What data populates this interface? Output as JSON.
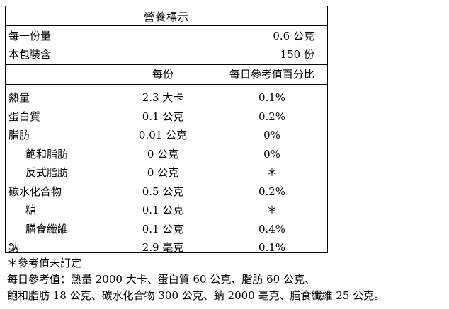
{
  "title": "營養標示",
  "serving": {
    "size_label": "每一份量",
    "size_value": "0.6 公克",
    "count_label": "本包裝含",
    "count_value": "150 份"
  },
  "columns": {
    "per_serving": "每份",
    "daily_percent": "每日參考值百分比"
  },
  "rows": [
    {
      "label": "熱量",
      "per": "2.3 大卡",
      "pct": "0.1%",
      "indent": false
    },
    {
      "label": "蛋白質",
      "per": "0.1 公克",
      "pct": "0.2%",
      "indent": false
    },
    {
      "label": "脂肪",
      "per": "0.01 公克",
      "pct": "0%",
      "indent": false
    },
    {
      "label": "飽和脂肪",
      "per": "0 公克",
      "pct": "0%",
      "indent": true
    },
    {
      "label": "反式脂肪",
      "per": "0 公克",
      "pct": "＊",
      "indent": true
    },
    {
      "label": "碳水化合物",
      "per": "0.5 公克",
      "pct": "0.2%",
      "indent": false
    },
    {
      "label": "糖",
      "per": "0.1 公克",
      "pct": "＊",
      "indent": true
    },
    {
      "label": "膳食纖維",
      "per": "0.1 公克",
      "pct": "0.4%",
      "indent": true
    },
    {
      "label": "鈉",
      "per": "2.9 毫克",
      "pct": "0.1%",
      "indent": false
    }
  ],
  "footnotes": [
    "＊參考值未訂定",
    "每日參考值：熱量 2000 大卡、蛋白質 60 公克、脂肪 60 公克、",
    "飽和脂肪 18 公克、碳水化合物 300 公克、鈉 2000 毫克、膳食纖維 25 公克。"
  ]
}
